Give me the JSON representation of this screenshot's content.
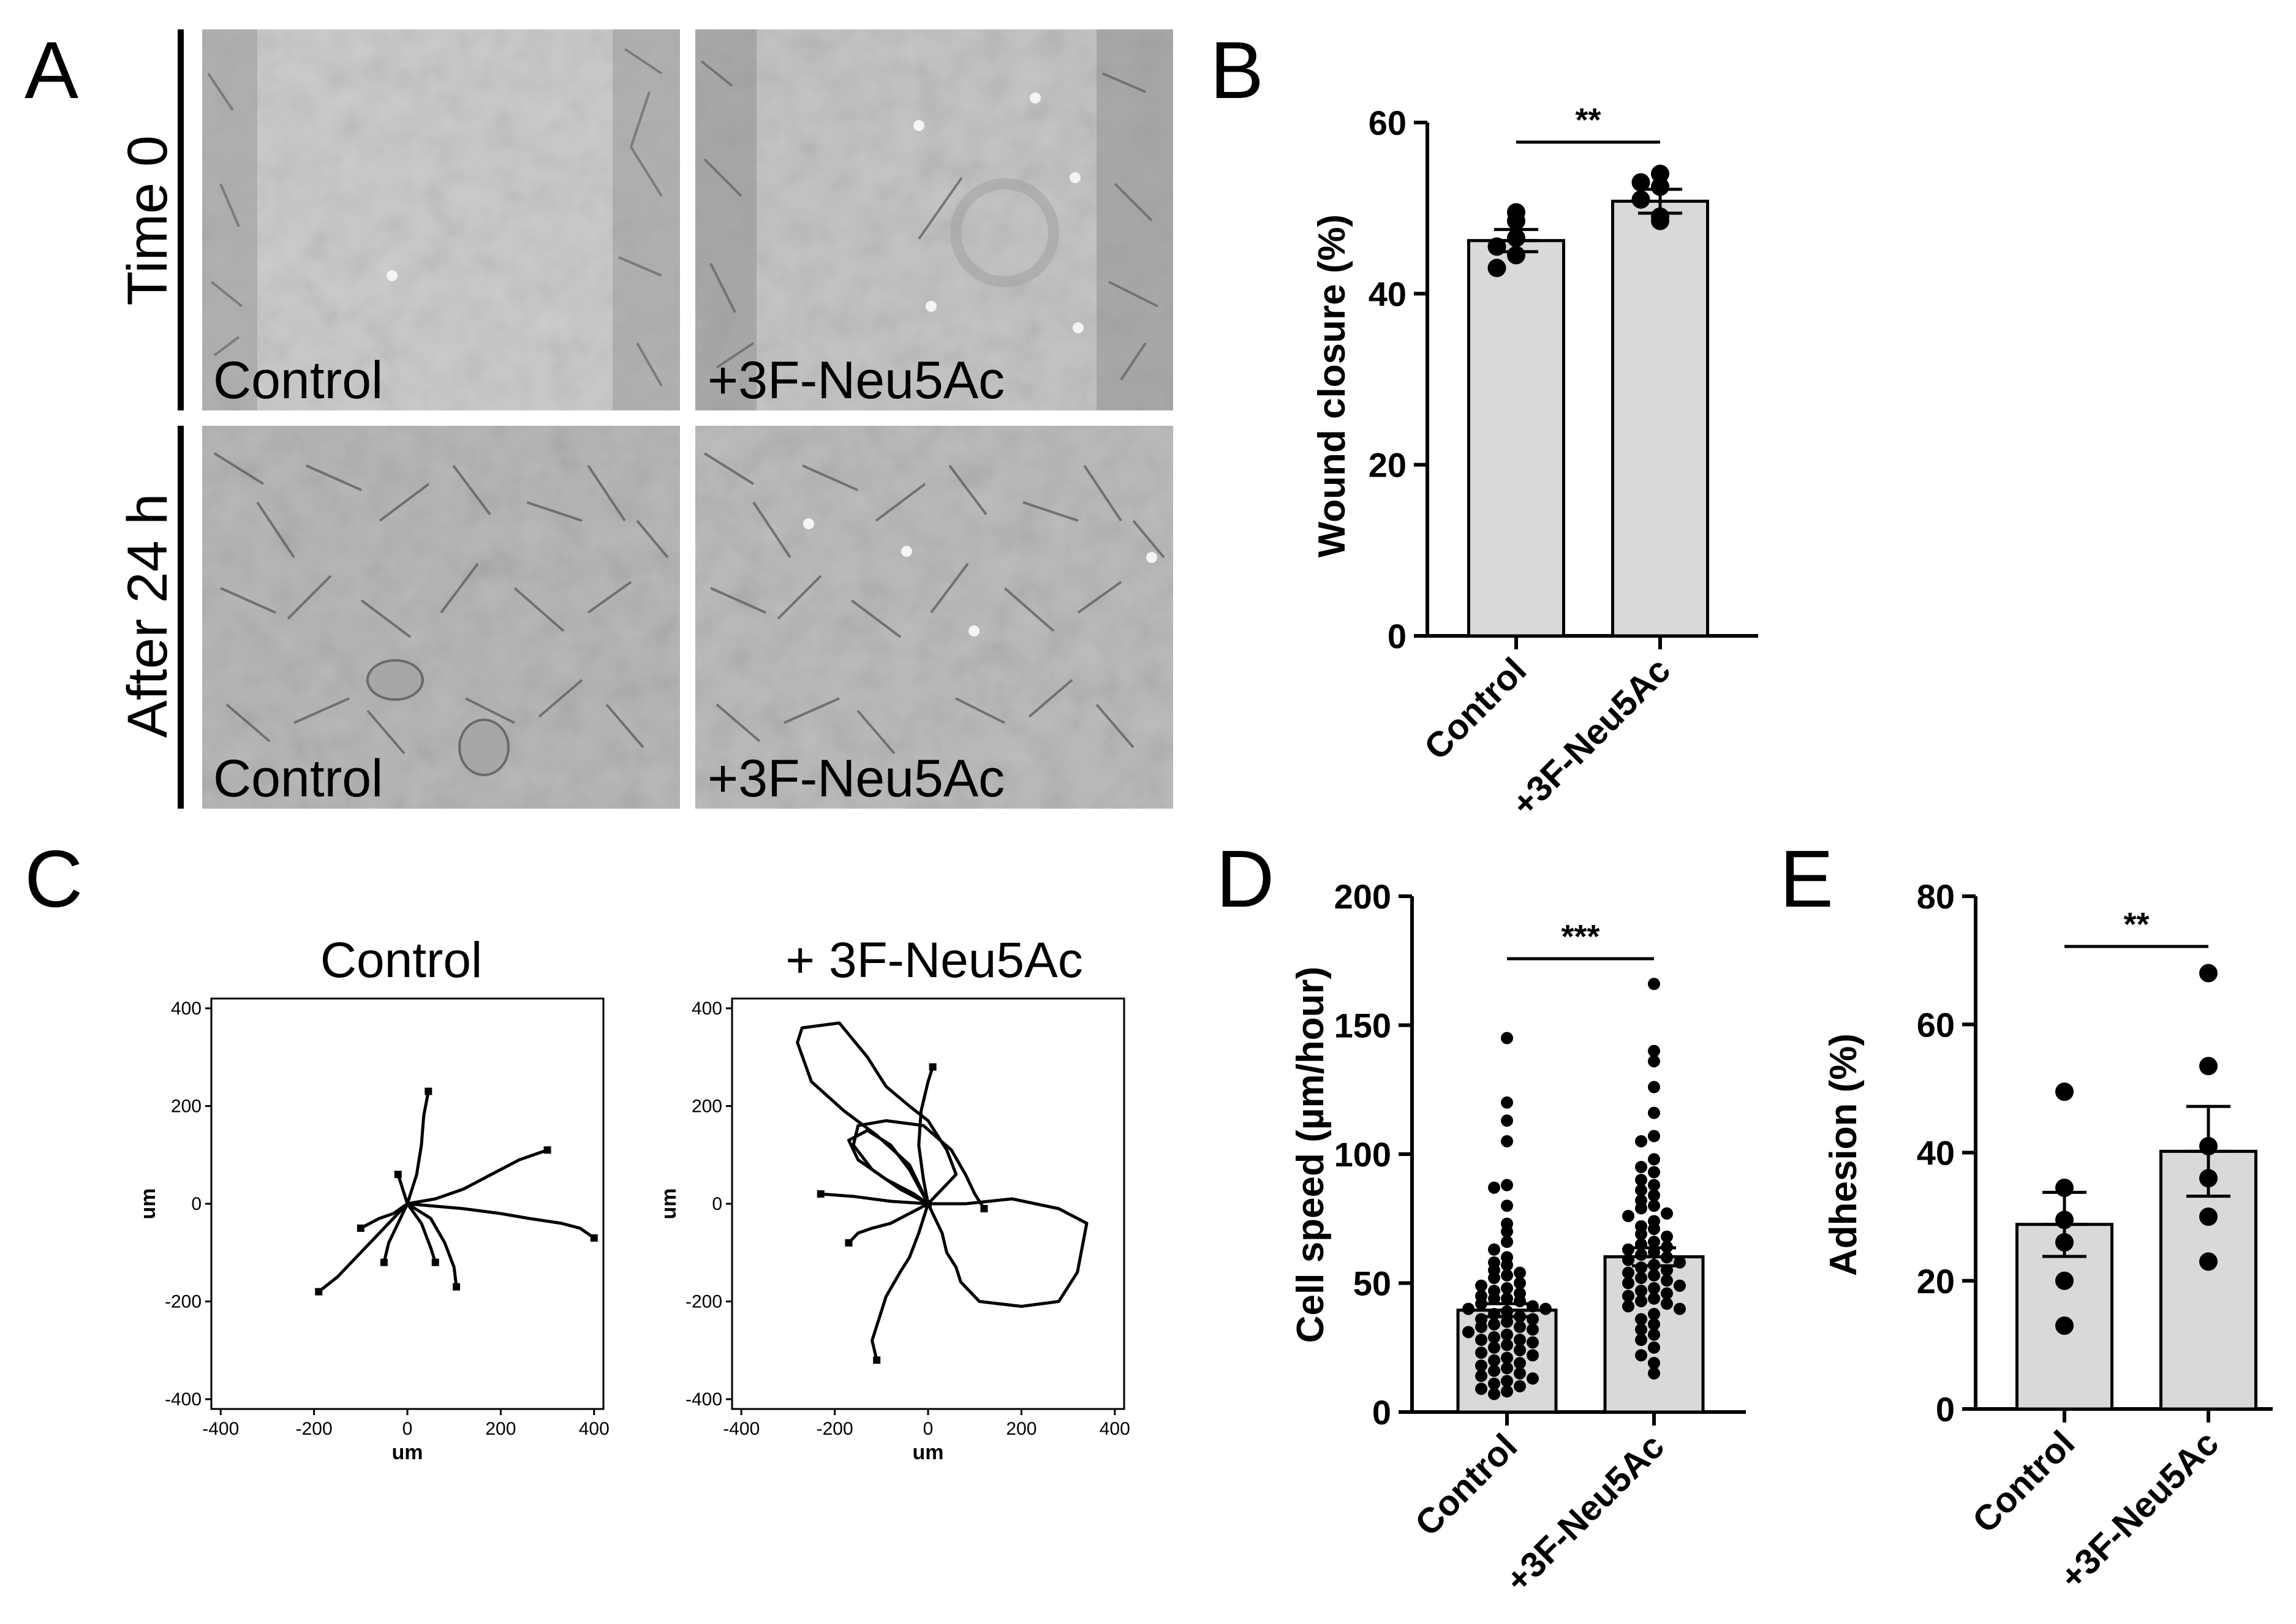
{
  "panels": {
    "a": {
      "letter": "A",
      "row_labels": [
        "Time 0",
        "After 24 h"
      ],
      "images": [
        {
          "label": "Control"
        },
        {
          "label": "+3F-Neu5Ac"
        },
        {
          "label": "Control"
        },
        {
          "label": "+3F-Neu5Ac"
        }
      ]
    },
    "b": {
      "letter": "B"
    },
    "c": {
      "letter": "C"
    },
    "d": {
      "letter": "D"
    },
    "e": {
      "letter": "E"
    }
  },
  "chart_data": [
    {
      "panel": "B",
      "type": "bar",
      "ylabel": "Wound closure (%)",
      "ylim": [
        0,
        60
      ],
      "yticks": [
        0,
        20,
        40,
        60
      ],
      "categories": [
        "Control",
        "+3F-Neu5Ac"
      ],
      "values": [
        46.2,
        50.8
      ],
      "error_sem": [
        1.3,
        1.4
      ],
      "points": [
        [
          49.5,
          48.5,
          46.5,
          45.5,
          44.5,
          43.0
        ],
        [
          54.0,
          53.0,
          52.5,
          51.0,
          49.0,
          48.5
        ]
      ],
      "significance": "**"
    },
    {
      "panel": "C",
      "type": "line",
      "xlabel": "um",
      "ylabel": "um",
      "plots": [
        {
          "title": "Control",
          "xlim": [
            -420,
            420
          ],
          "ylim": [
            -420,
            420
          ],
          "xticks": [
            -400,
            -200,
            0,
            200,
            400
          ],
          "yticks": [
            -400,
            -200,
            0,
            200,
            400
          ],
          "tracks": [
            [
              [
                0,
                0
              ],
              [
                20,
                60
              ],
              [
                30,
                120
              ],
              [
                35,
                180
              ],
              [
                45,
                230
              ]
            ],
            [
              [
                0,
                0
              ],
              [
                60,
                10
              ],
              [
                120,
                30
              ],
              [
                180,
                60
              ],
              [
                240,
                90
              ],
              [
                300,
                110
              ]
            ],
            [
              [
                0,
                0
              ],
              [
                60,
                -5
              ],
              [
                120,
                -10
              ],
              [
                200,
                -20
              ],
              [
                260,
                -30
              ],
              [
                330,
                -40
              ],
              [
                370,
                -50
              ],
              [
                400,
                -70
              ]
            ],
            [
              [
                0,
                0
              ],
              [
                -30,
                -30
              ],
              [
                -70,
                -70
              ],
              [
                -110,
                -110
              ],
              [
                -150,
                -150
              ],
              [
                -190,
                -180
              ]
            ],
            [
              [
                0,
                0
              ],
              [
                -20,
                -40
              ],
              [
                -40,
                -80
              ],
              [
                -50,
                -120
              ]
            ],
            [
              [
                0,
                0
              ],
              [
                30,
                -40
              ],
              [
                50,
                -90
              ],
              [
                60,
                -120
              ]
            ],
            [
              [
                0,
                0
              ],
              [
                50,
                -30
              ],
              [
                80,
                -80
              ],
              [
                100,
                -130
              ],
              [
                105,
                -170
              ]
            ],
            [
              [
                0,
                0
              ],
              [
                -30,
                -20
              ],
              [
                -60,
                -30
              ],
              [
                -100,
                -50
              ]
            ],
            [
              [
                0,
                0
              ],
              [
                -10,
                30
              ],
              [
                -20,
                60
              ]
            ]
          ]
        },
        {
          "title": "+ 3F-Neu5Ac",
          "xlim": [
            -420,
            420
          ],
          "ylim": [
            -420,
            420
          ],
          "xticks": [
            -400,
            -200,
            0,
            200,
            400
          ],
          "yticks": [
            -400,
            -200,
            0,
            200,
            400
          ],
          "tracks": [
            [
              [
                0,
                0
              ],
              [
                80,
                0
              ],
              [
                180,
                10
              ],
              [
                280,
                -10
              ],
              [
                340,
                -40
              ],
              [
                320,
                -140
              ],
              [
                280,
                -200
              ],
              [
                200,
                -210
              ],
              [
                110,
                -200
              ],
              [
                70,
                -160
              ],
              [
                60,
                -130
              ],
              [
                40,
                -100
              ],
              [
                30,
                -60
              ],
              [
                0,
                0
              ]
            ],
            [
              [
                0,
                0
              ],
              [
                -40,
                80
              ],
              [
                -110,
                140
              ],
              [
                -180,
                190
              ],
              [
                -250,
                250
              ],
              [
                -280,
                330
              ],
              [
                -270,
                360
              ],
              [
                -190,
                370
              ],
              [
                -130,
                300
              ],
              [
                -90,
                240
              ],
              [
                -40,
                200
              ],
              [
                0,
                170
              ],
              [
                40,
                110
              ],
              [
                60,
                60
              ],
              [
                30,
                30
              ],
              [
                0,
                0
              ]
            ],
            [
              [
                0,
                0
              ],
              [
                -60,
                30
              ],
              [
                -120,
                70
              ],
              [
                -160,
                120
              ],
              [
                -150,
                160
              ],
              [
                -90,
                170
              ],
              [
                -10,
                160
              ],
              [
                50,
                110
              ],
              [
                80,
                60
              ],
              [
                100,
                20
              ],
              [
                120,
                -10
              ]
            ],
            [
              [
                0,
                0
              ],
              [
                -40,
                70
              ],
              [
                -80,
                120
              ],
              [
                -130,
                150
              ],
              [
                -170,
                130
              ],
              [
                -150,
                90
              ],
              [
                -90,
                50
              ],
              [
                -30,
                20
              ],
              [
                0,
                0
              ]
            ],
            [
              [
                0,
                0
              ],
              [
                -20,
                -60
              ],
              [
                -40,
                -110
              ],
              [
                -60,
                -140
              ],
              [
                -90,
                -190
              ],
              [
                -120,
                -280
              ],
              [
                -110,
                -320
              ]
            ],
            [
              [
                0,
                0
              ],
              [
                -40,
                -20
              ],
              [
                -80,
                -40
              ],
              [
                -120,
                -50
              ],
              [
                -150,
                -60
              ],
              [
                -170,
                -80
              ]
            ],
            [
              [
                0,
                0
              ],
              [
                -10,
                50
              ],
              [
                -20,
                120
              ],
              [
                -15,
                190
              ],
              [
                0,
                250
              ],
              [
                10,
                280
              ]
            ],
            [
              [
                0,
                0
              ],
              [
                -80,
                5
              ],
              [
                -160,
                15
              ],
              [
                -230,
                20
              ]
            ]
          ]
        }
      ]
    },
    {
      "panel": "D",
      "type": "bar",
      "ylabel": "Cell speed (µm/hour)",
      "ylim": [
        0,
        200
      ],
      "yticks": [
        0,
        50,
        100,
        150,
        200
      ],
      "categories": [
        "Control",
        "+3F-Neu5Ac"
      ],
      "values": [
        39.5,
        60.2
      ],
      "error_sem": [
        2.5,
        3.5
      ],
      "points": [
        [
          145,
          120,
          113,
          105,
          88,
          87,
          80,
          73,
          70,
          66,
          63,
          60,
          58,
          57,
          55,
          54,
          53,
          52,
          50,
          49,
          48,
          47,
          46,
          45,
          44,
          44,
          43,
          42,
          41,
          40,
          40,
          39,
          38,
          37,
          36,
          36,
          35,
          34,
          33,
          33,
          32,
          31,
          30,
          29,
          28,
          28,
          27,
          26,
          25,
          24,
          23,
          22,
          21,
          20,
          19,
          18,
          17,
          16,
          15,
          14,
          13,
          12,
          11,
          10,
          9,
          8,
          7
        ],
        [
          166,
          140,
          136,
          126,
          116,
          107,
          105,
          98,
          95,
          93,
          90,
          88,
          86,
          84,
          82,
          80,
          79,
          77,
          76,
          74,
          72,
          71,
          69,
          68,
          66,
          65,
          64,
          63,
          62,
          61,
          60,
          59,
          58,
          57,
          56,
          55,
          54,
          53,
          52,
          51,
          50,
          49,
          48,
          47,
          46,
          45,
          44,
          43,
          42,
          41,
          40,
          38,
          36,
          34,
          32,
          30,
          28,
          25,
          22,
          19,
          15
        ]
      ],
      "significance": "***"
    },
    {
      "panel": "E",
      "type": "bar",
      "ylabel": "Adhesion (%)",
      "ylim": [
        0,
        80
      ],
      "yticks": [
        0,
        20,
        40,
        60,
        80
      ],
      "categories": [
        "Control",
        "+3F-Neu5Ac"
      ],
      "values": [
        28.8,
        40.2
      ],
      "error_sem": [
        5.0,
        7.0
      ],
      "points": [
        [
          49.5,
          34.5,
          29.5,
          26.0,
          20.0,
          13.0
        ],
        [
          68.0,
          53.5,
          41.0,
          36.0,
          30.0,
          23.0
        ]
      ],
      "significance": "**"
    }
  ],
  "style": {
    "bar_fill": "#d9d9d9",
    "ink": "#000000",
    "micrograph_bg": "#c8c8c8"
  }
}
